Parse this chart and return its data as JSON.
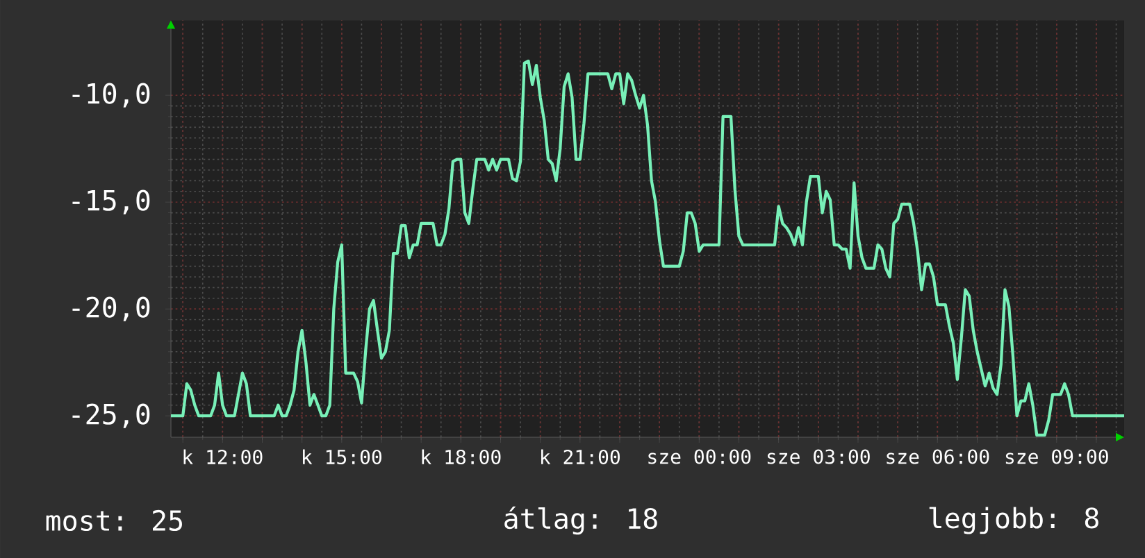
{
  "chart_data": {
    "type": "line",
    "categories": [
      null,
      null,
      null,
      null,
      null,
      null,
      null,
      null,
      null,
      null,
      null,
      null,
      null,
      "k 12:00",
      null,
      null,
      null,
      null,
      null,
      null,
      null,
      null,
      null,
      null,
      null,
      null,
      null,
      null,
      null,
      null,
      null,
      null,
      null,
      null,
      null,
      null,
      null,
      null,
      null,
      null,
      null,
      null,
      null,
      "k 15:00",
      null,
      null,
      null,
      null,
      null,
      null,
      null,
      null,
      null,
      null,
      null,
      null,
      null,
      null,
      null,
      null,
      null,
      null,
      null,
      null,
      null,
      null,
      null,
      null,
      null,
      null,
      null,
      null,
      null,
      "k 18:00",
      null,
      null,
      null,
      null,
      null,
      null,
      null,
      null,
      null,
      null,
      null,
      null,
      null,
      null,
      null,
      null,
      null,
      null,
      null,
      null,
      null,
      null,
      null,
      null,
      null,
      null,
      null,
      null,
      null,
      "k 21:00",
      null,
      null,
      null,
      null,
      null,
      null,
      null,
      null,
      null,
      null,
      null,
      null,
      null,
      null,
      null,
      null,
      null,
      null,
      null,
      null,
      null,
      null,
      null,
      null,
      null,
      null,
      null,
      null,
      null,
      "sze 00:00",
      null,
      null,
      null,
      null,
      null,
      null,
      null,
      null,
      null,
      null,
      null,
      null,
      null,
      null,
      null,
      null,
      null,
      null,
      null,
      null,
      null,
      null,
      null,
      null,
      null,
      null,
      null,
      null,
      null,
      "sze 03:00",
      null,
      null,
      null,
      null,
      null,
      null,
      null,
      null,
      null,
      null,
      null,
      null,
      null,
      null,
      null,
      null,
      null,
      null,
      null,
      null,
      null,
      null,
      null,
      null,
      null,
      null,
      null,
      null,
      null,
      "sze 06:00",
      null,
      null,
      null,
      null,
      null,
      null,
      null,
      null,
      null,
      null,
      null,
      null,
      null,
      null,
      null,
      null,
      null,
      null,
      null,
      null,
      null,
      null,
      null,
      null,
      null,
      null,
      null,
      null,
      null,
      "sze 09:00",
      null,
      null,
      null,
      null,
      null,
      null,
      null,
      null,
      null,
      null,
      null,
      null,
      null,
      null,
      null,
      null,
      null
    ],
    "values": [
      -25,
      -25,
      -25,
      -25,
      -23.5,
      -23.8,
      -24.5,
      -25,
      -25,
      -25,
      -25,
      -24.5,
      -23,
      -24.5,
      -25,
      -25,
      -25,
      -24,
      -23,
      -23.5,
      -25,
      -25,
      -25,
      -25,
      -25,
      -25,
      -25,
      -24.5,
      -25,
      -25,
      -24.5,
      -23.8,
      -22,
      -21,
      -22.5,
      -24.5,
      -24,
      -24.5,
      -25,
      -25,
      -24.5,
      -20,
      -17.8,
      -17,
      -23,
      -23,
      -23,
      -23.4,
      -24.4,
      -22,
      -20,
      -19.6,
      -21,
      -22.3,
      -22,
      -21,
      -17.4,
      -17.4,
      -16.1,
      -16.1,
      -17.6,
      -17,
      -17,
      -16,
      -16,
      -16,
      -16,
      -17,
      -17,
      -16.5,
      -15.3,
      -13.1,
      -13,
      -13,
      -15.5,
      -16,
      -14.4,
      -13,
      -13,
      -13,
      -13.5,
      -13,
      -13.5,
      -13,
      -13,
      -13,
      -13.9,
      -14,
      -13.1,
      -8.5,
      -8.4,
      -9.5,
      -8.6,
      -10.1,
      -11.2,
      -13,
      -13.2,
      -14,
      -12.5,
      -9.6,
      -9,
      -10.1,
      -13,
      -13,
      -11.3,
      -9,
      -9,
      -9,
      -9,
      -9,
      -9,
      -9.7,
      -9,
      -9,
      -10.4,
      -9,
      -9.3,
      -10,
      -10.6,
      -10,
      -11.4,
      -14,
      -15,
      -16.8,
      -18,
      -18,
      -18,
      -18,
      -18,
      -17.3,
      -15.5,
      -15.5,
      -16,
      -17.3,
      -17,
      -17,
      -17,
      -17,
      -17,
      -11,
      -11,
      -11,
      -14.4,
      -16.6,
      -17,
      -17,
      -17,
      -17,
      -17,
      -17,
      -17,
      -17,
      -17,
      -15.2,
      -16,
      -16.2,
      -16.5,
      -17,
      -16.2,
      -17,
      -15,
      -13.8,
      -13.8,
      -13.8,
      -15.5,
      -14.5,
      -14.9,
      -17,
      -17,
      -17.2,
      -17.2,
      -18.1,
      -14.1,
      -16.6,
      -17.6,
      -18.1,
      -18.1,
      -18.1,
      -17,
      -17.2,
      -18.1,
      -18.5,
      -16,
      -15.8,
      -15.1,
      -15.1,
      -15.1,
      -16,
      -17.3,
      -19.1,
      -17.9,
      -17.9,
      -18.5,
      -19.8,
      -19.8,
      -19.8,
      -20.8,
      -21.6,
      -23.3,
      -21.4,
      -19.1,
      -19.4,
      -21,
      -22,
      -22.8,
      -23.6,
      -23,
      -23.7,
      -24,
      -22.6,
      -19.1,
      -19.9,
      -22.2,
      -25,
      -24.3,
      -24.3,
      -23.5,
      -24.5,
      -25.9,
      -25.9,
      -25.9,
      -25.2,
      -24,
      -24,
      -24,
      -23.5,
      -24,
      -25,
      -25,
      -25,
      -25,
      -25,
      -25,
      -25,
      -25,
      -25,
      -25,
      -25,
      -25,
      -25,
      -25
    ],
    "ylim": [
      -26,
      -6.5
    ],
    "yticks": [
      {
        "value": -25,
        "label": "-25,0"
      },
      {
        "value": -20,
        "label": "-20,0"
      },
      {
        "value": -15,
        "label": "-15,0"
      },
      {
        "value": -10,
        "label": "-10,0"
      }
    ],
    "grid": true,
    "color": "#78f0b8",
    "annotations": [
      "most: 25",
      "átlag: 18",
      "legjobb: 8"
    ]
  }
}
